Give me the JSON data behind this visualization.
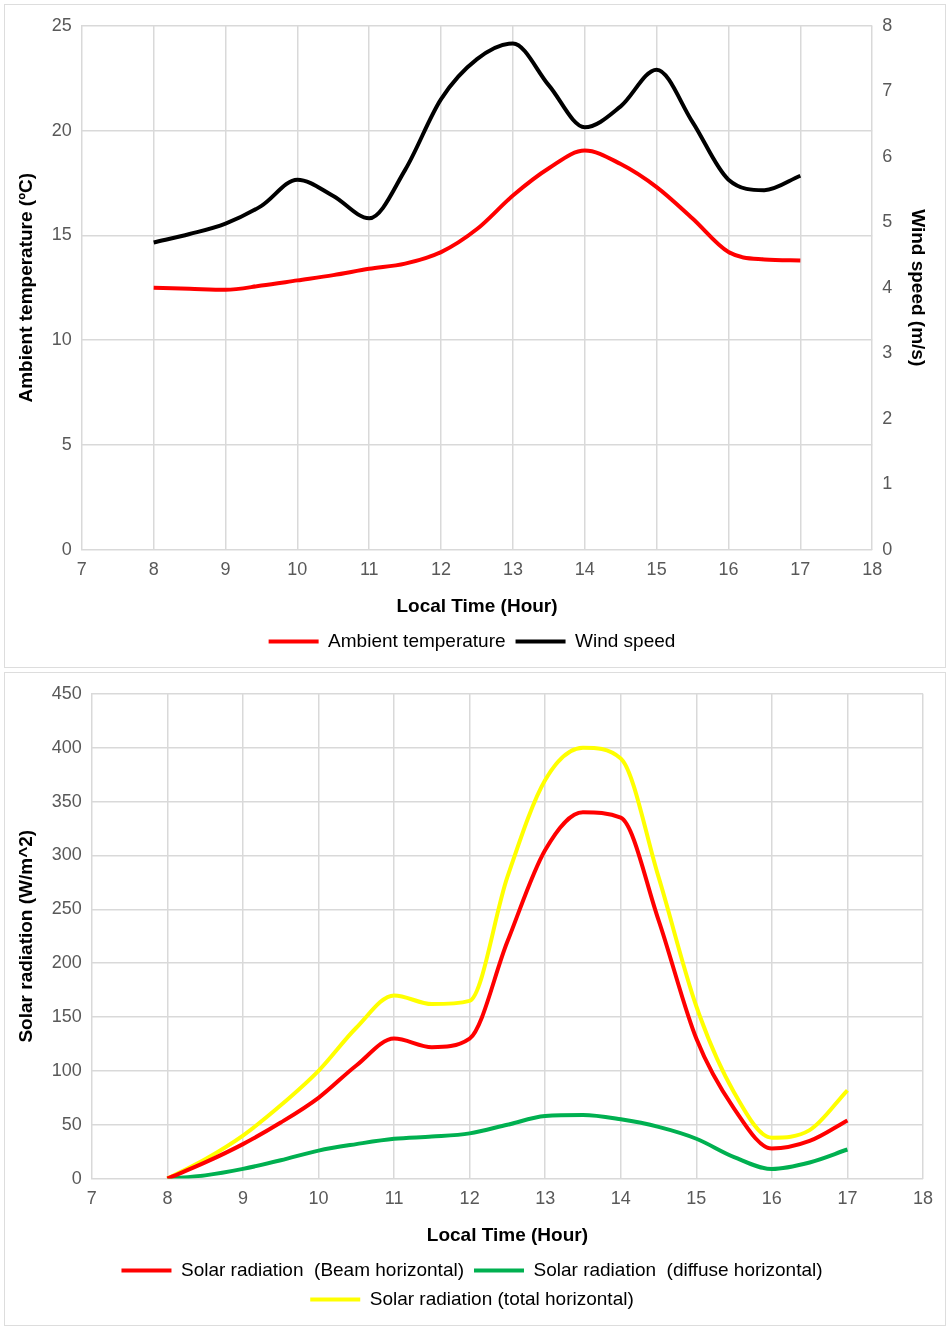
{
  "chart_data": [
    {
      "type": "line",
      "xlabel": "Local Time (Hour)",
      "ylabel": "Ambient temperature (ºC)",
      "y2label": "Wind speed (m/s)",
      "x": [
        8,
        8.5,
        9,
        9.5,
        10,
        10.5,
        11,
        11.5,
        12,
        12.5,
        13,
        13.5,
        14,
        14.5,
        15,
        15.5,
        16,
        16.5,
        17
      ],
      "xlim": [
        7,
        18
      ],
      "xticks": [
        7,
        8,
        9,
        10,
        11,
        12,
        13,
        14,
        15,
        16,
        17,
        18
      ],
      "ylim": [
        0,
        25
      ],
      "yticks": [
        0,
        5,
        10,
        15,
        20,
        25
      ],
      "y2lim": [
        0,
        8
      ],
      "y2ticks": [
        0,
        1,
        2,
        3,
        4,
        5,
        6,
        7,
        8
      ],
      "grid": true,
      "legend": "bottom",
      "marker": "none",
      "series": [
        {
          "name": "Ambient temperature",
          "color": "#ff0000",
          "values": [
            12.5,
            12.45,
            12.4,
            12.6,
            12.85,
            13.1,
            13.4,
            13.65,
            14.2,
            15.3,
            16.9,
            18.2,
            19.05,
            18.4,
            17.3,
            15.8,
            14.2,
            13.85,
            13.8
          ]
        },
        {
          "name": "Wind speed",
          "color": "#000000",
          "axis": "y2",
          "values": [
            4.69,
            4.82,
            4.98,
            5.25,
            5.65,
            5.4,
            5.06,
            5.8,
            6.88,
            7.49,
            7.73,
            7.09,
            6.45,
            6.77,
            7.33,
            6.53,
            5.65,
            5.49,
            5.71
          ]
        }
      ]
    },
    {
      "type": "line",
      "xlabel": "Local Time (Hour)",
      "ylabel": "Solar radiation (W/m^2)",
      "x": [
        8,
        8.5,
        9,
        9.5,
        10,
        10.5,
        11,
        11.5,
        12,
        12.5,
        13,
        13.5,
        14,
        14.5,
        15,
        15.5,
        16,
        16.5,
        17
      ],
      "xlim": [
        7,
        18
      ],
      "xticks": [
        7,
        8,
        9,
        10,
        11,
        12,
        13,
        14,
        15,
        16,
        17,
        18
      ],
      "ylim": [
        0,
        450
      ],
      "yticks": [
        0,
        50,
        100,
        150,
        200,
        250,
        300,
        350,
        400,
        450
      ],
      "grid": true,
      "legend": "bottom",
      "marker": "none",
      "series": [
        {
          "name": "Solar radiation  (Beam horizontal)",
          "color": "#ff0000",
          "values": [
            0,
            15,
            32,
            52,
            75,
            105,
            130,
            122,
            130,
            220,
            305,
            340,
            335,
            240,
            130,
            65,
            28,
            35,
            54
          ]
        },
        {
          "name": "Solar radiation  (diffuse horizontal)",
          "color": "#00b050",
          "values": [
            0,
            3,
            9,
            17,
            26,
            32,
            37,
            39,
            42,
            50,
            58,
            59,
            55,
            48,
            37,
            20,
            9,
            15,
            27
          ]
        },
        {
          "name": "Solar radiation (total horizontal)",
          "color": "#ffff00",
          "values": [
            0,
            18,
            40,
            68,
            100,
            140,
            170,
            162,
            165,
            280,
            370,
            400,
            390,
            280,
            160,
            80,
            38,
            45,
            82
          ]
        }
      ]
    }
  ]
}
